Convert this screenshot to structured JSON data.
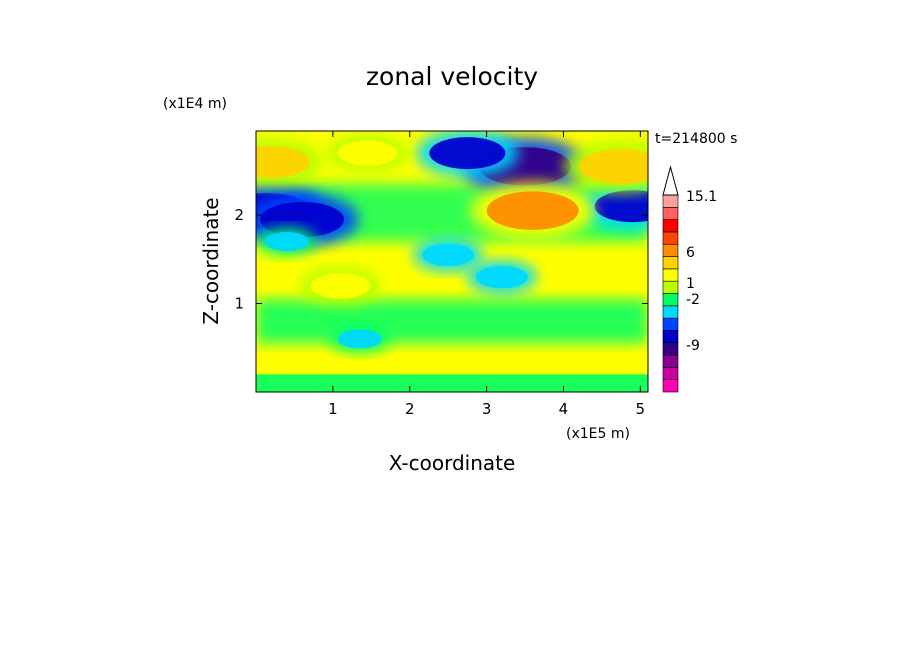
{
  "chart_data": {
    "type": "heatmap",
    "title": "zonal velocity",
    "xlabel": "X-coordinate",
    "ylabel": "Z-coordinate",
    "x_scale_note": "(x1E5 m)",
    "y_scale_note": "(x1E4 m)",
    "time_label": "t=214800 s",
    "xlim": [
      0,
      5.1
    ],
    "ylim": [
      0,
      2.95
    ],
    "x_ticks": [
      "1",
      "2",
      "3",
      "4",
      "5"
    ],
    "y_ticks": [
      "1",
      "2"
    ],
    "colorbar": {
      "labels": [
        "15.1",
        "6",
        "1",
        "-2",
        "-9"
      ],
      "colors": [
        "#ff00b4",
        "#cc00a0",
        "#8a0096",
        "#330088",
        "#0000cc",
        "#0044ff",
        "#00d8ff",
        "#00ff66",
        "#b4ff00",
        "#ffff00",
        "#ffd200",
        "#ff8c00",
        "#ff4400",
        "#ff0000",
        "#ff6060",
        "#ffa0a0"
      ]
    },
    "features": [
      {
        "x": 0.15,
        "z": 2.05,
        "value": -6
      },
      {
        "x": 0.6,
        "z": 1.95,
        "value": -6
      },
      {
        "x": 3.5,
        "z": 2.55,
        "value": -7
      },
      {
        "x": 4.9,
        "z": 2.1,
        "value": -5
      },
      {
        "x": 2.75,
        "z": 2.7,
        "value": -5
      },
      {
        "x": 0.2,
        "z": 2.6,
        "value": 5
      },
      {
        "x": 3.6,
        "z": 2.05,
        "value": 7
      },
      {
        "x": 4.75,
        "z": 2.55,
        "value": 6
      },
      {
        "x": 1.1,
        "z": 1.2,
        "value": 3
      },
      {
        "x": 1.45,
        "z": 2.7,
        "value": 3
      },
      {
        "x": 1.35,
        "z": 0.6,
        "value": -1
      },
      {
        "x": 0.4,
        "z": 1.7,
        "value": -1
      },
      {
        "x": 2.5,
        "z": 1.55,
        "value": -2
      },
      {
        "x": 3.2,
        "z": 1.3,
        "value": -2
      }
    ]
  }
}
